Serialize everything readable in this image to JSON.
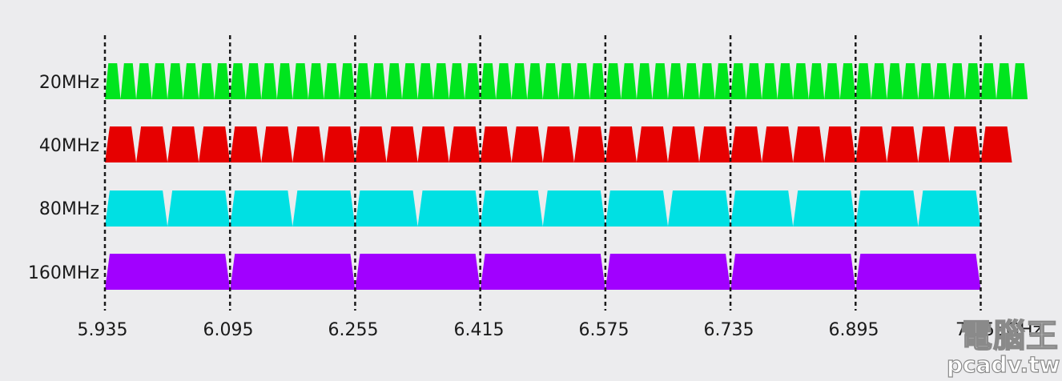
{
  "rows": [
    {
      "label": "20MHz",
      "channel_width_mhz": 20,
      "channel_count": 59,
      "color": "#00e51e"
    },
    {
      "label": "40MHz",
      "channel_width_mhz": 40,
      "channel_count": 29,
      "color": "#e60000"
    },
    {
      "label": "80MHz",
      "channel_width_mhz": 80,
      "channel_count": 14,
      "color": "#00e0e3"
    },
    {
      "label": "160MHz",
      "channel_width_mhz": 160,
      "channel_count": 7,
      "color": "#a100ff"
    }
  ],
  "axis": {
    "ticks": [
      "5.935",
      "6.095",
      "6.255",
      "6.415",
      "6.575",
      "6.735",
      "6.895",
      "7.055GHz"
    ],
    "tick_values_ghz": [
      5.935,
      6.095,
      6.255,
      6.415,
      6.575,
      6.735,
      6.895,
      7.055
    ],
    "start_ghz": 5.935,
    "end_ghz": 7.125
  },
  "watermark": {
    "main": "電腦王",
    "sub": "pcadv.tw"
  }
}
